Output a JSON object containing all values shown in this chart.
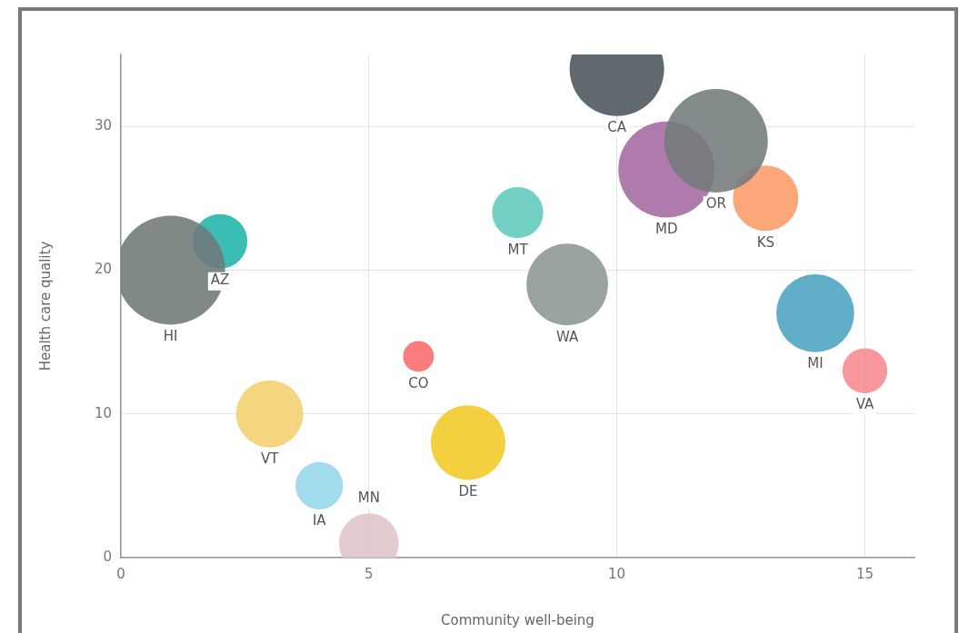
{
  "chart_data": {
    "type": "bubble",
    "xlabel": "Community well-being",
    "ylabel": "Health care quality",
    "xlim": [
      0,
      16
    ],
    "xticks": [
      0,
      5,
      10,
      15
    ],
    "ylim": [
      0,
      35
    ],
    "yticks": [
      0,
      10,
      20,
      30
    ],
    "grid": true,
    "legend": false,
    "series": [
      {
        "name": "HI",
        "color": "#6e7778",
        "x": [
          1
        ],
        "values": [
          20
        ],
        "sizes": [
          1
        ]
      },
      {
        "name": "AZ",
        "color": "#1fb5a8",
        "x": [
          2
        ],
        "values": [
          22
        ],
        "sizes": [
          0.25
        ]
      },
      {
        "name": "CA",
        "color": "#4a5459",
        "x": [
          10
        ],
        "values": [
          34
        ],
        "sizes": [
          0.75
        ]
      },
      {
        "name": "OR",
        "color": "#737b7b",
        "x": [
          12
        ],
        "values": [
          29
        ],
        "sizes": [
          0.9
        ]
      },
      {
        "name": "MD",
        "color": "#a468a0",
        "x": [
          11
        ],
        "values": [
          27
        ],
        "sizes": [
          0.78
        ]
      },
      {
        "name": "KS",
        "color": "#fd9a66",
        "x": [
          13
        ],
        "values": [
          25
        ],
        "sizes": [
          0.36
        ]
      },
      {
        "name": "MT",
        "color": "#5ecabd",
        "x": [
          8
        ],
        "values": [
          24
        ],
        "sizes": [
          0.22
        ]
      },
      {
        "name": "WA",
        "color": "#8d9595",
        "x": [
          9
        ],
        "values": [
          19
        ],
        "sizes": [
          0.56
        ]
      },
      {
        "name": "MI",
        "color": "#4aa3bf",
        "x": [
          14
        ],
        "values": [
          17
        ],
        "sizes": [
          0.51
        ]
      },
      {
        "name": "VA",
        "color": "#f78a8e",
        "x": [
          15
        ],
        "values": [
          13
        ],
        "sizes": [
          0.17
        ]
      },
      {
        "name": "CO",
        "color": "#f96b6b",
        "x": [
          6
        ],
        "values": [
          14
        ],
        "sizes": [
          0.08
        ]
      },
      {
        "name": "VT",
        "color": "#f2d06c",
        "x": [
          3
        ],
        "values": [
          10
        ],
        "sizes": [
          0.38
        ]
      },
      {
        "name": "IA",
        "color": "#93d6ec",
        "x": [
          4
        ],
        "values": [
          5
        ],
        "sizes": [
          0.19
        ]
      },
      {
        "name": "MN",
        "color": "#dfc3c5",
        "x": [
          5
        ],
        "values": [
          1
        ],
        "sizes": [
          0.3
        ]
      },
      {
        "name": "DE",
        "color": "#f2ca26",
        "x": [
          7
        ],
        "values": [
          8
        ],
        "sizes": [
          0.47
        ]
      }
    ]
  }
}
